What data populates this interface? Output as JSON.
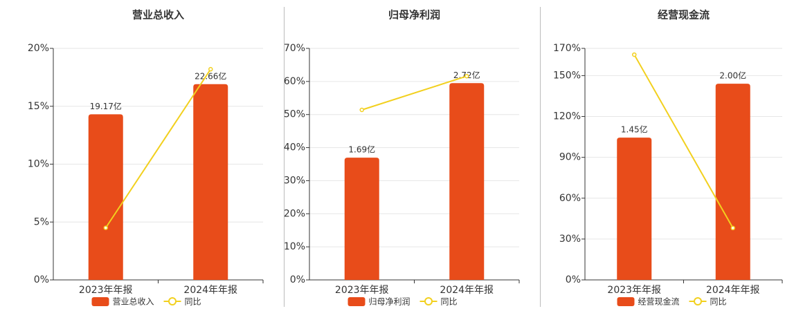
{
  "chart_data": [
    {
      "type": "bar",
      "title": "营业总收入",
      "categories": [
        "2023年年报",
        "2024年年报"
      ],
      "series": [
        {
          "name": "营业总收入",
          "type": "bar",
          "axis": "y2",
          "color": "#e84c1a",
          "values": [
            19.17,
            22.66
          ],
          "value_labels": [
            "19.17亿",
            "22.66亿"
          ]
        },
        {
          "name": "同比",
          "type": "line",
          "color": "#f2d01e",
          "values": [
            4.5,
            18.2
          ]
        }
      ],
      "ylim": [
        0,
        20
      ],
      "yticks": [
        {
          "value": 0,
          "label": "0%"
        },
        {
          "value": 5,
          "label": "5%"
        },
        {
          "value": 10,
          "label": "10%"
        },
        {
          "value": 15,
          "label": "15%"
        },
        {
          "value": 20,
          "label": "20%"
        }
      ],
      "y2lim": [
        0,
        26.8
      ]
    },
    {
      "type": "bar",
      "title": "归母净利润",
      "categories": [
        "2023年年报",
        "2024年年报"
      ],
      "series": [
        {
          "name": "归母净利润",
          "type": "bar",
          "axis": "y2",
          "color": "#e84c1a",
          "values": [
            1.69,
            2.72
          ],
          "value_labels": [
            "1.69亿",
            "2.72亿"
          ]
        },
        {
          "name": "同比",
          "type": "line",
          "color": "#f2d01e",
          "values": [
            51.4,
            61.6
          ]
        }
      ],
      "ylim": [
        0,
        70
      ],
      "yticks": [
        {
          "value": 0,
          "label": "0%"
        },
        {
          "value": 10,
          "label": "10%"
        },
        {
          "value": 20,
          "label": "20%"
        },
        {
          "value": 30,
          "label": "30%"
        },
        {
          "value": 40,
          "label": "40%"
        },
        {
          "value": 50,
          "label": "50%"
        },
        {
          "value": 60,
          "label": "60%"
        },
        {
          "value": 70,
          "label": "70%"
        }
      ],
      "y2lim": [
        0,
        3.2
      ]
    },
    {
      "type": "bar",
      "title": "经营现金流",
      "categories": [
        "2023年年报",
        "2024年年报"
      ],
      "series": [
        {
          "name": "经营现金流",
          "type": "bar",
          "axis": "y2",
          "color": "#e84c1a",
          "values": [
            1.45,
            2.0
          ],
          "value_labels": [
            "1.45亿",
            "2.00亿"
          ]
        },
        {
          "name": "同比",
          "type": "line",
          "color": "#f2d01e",
          "values": [
            165.4,
            38.1
          ]
        }
      ],
      "ylim": [
        0,
        170
      ],
      "yticks": [
        {
          "value": 0,
          "label": "0%"
        },
        {
          "value": 30,
          "label": "30%"
        },
        {
          "value": 60,
          "label": "60%"
        },
        {
          "value": 90,
          "label": "90%"
        },
        {
          "value": 120,
          "label": "120%"
        },
        {
          "value": 150,
          "label": "150%"
        },
        {
          "value": 170,
          "label": "170%"
        }
      ],
      "y2lim": [
        0,
        2.36
      ]
    }
  ]
}
